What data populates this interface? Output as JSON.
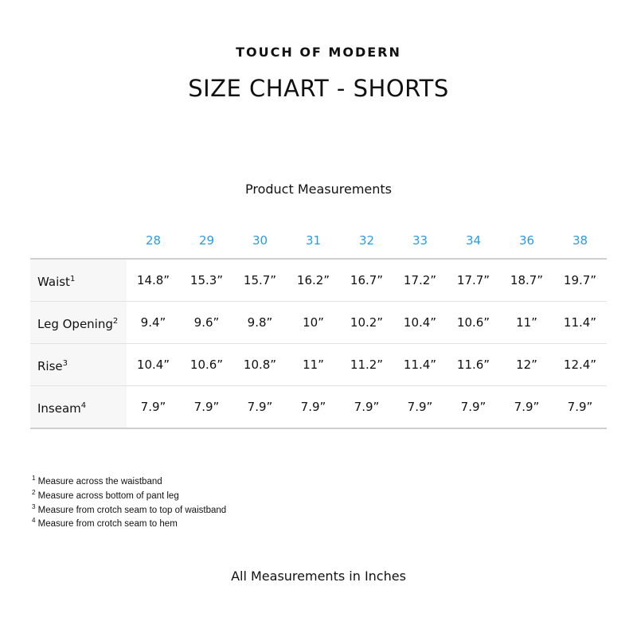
{
  "brand": "TOUCH OF MODERN",
  "title": "SIZE CHART - SHORTS",
  "subtitle": "Product Measurements",
  "accent_color": "#2b9be0",
  "sizes": [
    "28",
    "29",
    "30",
    "31",
    "32",
    "33",
    "34",
    "36",
    "38"
  ],
  "rows": [
    {
      "label": "Waist",
      "note": "1",
      "values": [
        "14.8”",
        "15.3”",
        "15.7”",
        "16.2”",
        "16.7”",
        "17.2”",
        "17.7”",
        "18.7”",
        "19.7”"
      ]
    },
    {
      "label": "Leg Opening",
      "note": "2",
      "values": [
        "9.4”",
        "9.6”",
        "9.8”",
        "10”",
        "10.2”",
        "10.4”",
        "10.6”",
        "11”",
        "11.4”"
      ]
    },
    {
      "label": "Rise",
      "note": "3",
      "values": [
        "10.4”",
        "10.6”",
        "10.8”",
        "11”",
        "11.2”",
        "11.4”",
        "11.6”",
        "12”",
        "12.4”"
      ]
    },
    {
      "label": "Inseam",
      "note": "4",
      "values": [
        "7.9”",
        "7.9”",
        "7.9”",
        "7.9”",
        "7.9”",
        "7.9”",
        "7.9”",
        "7.9”",
        "7.9”"
      ]
    }
  ],
  "footnotes": [
    {
      "n": "1",
      "text": "Measure across the waistband"
    },
    {
      "n": "2",
      "text": "Measure across bottom of pant leg"
    },
    {
      "n": "3",
      "text": "Measure from crotch seam to top of waistband"
    },
    {
      "n": "4",
      "text": "Measure from crotch seam to hem"
    }
  ],
  "footer": "All Measurements in Inches"
}
